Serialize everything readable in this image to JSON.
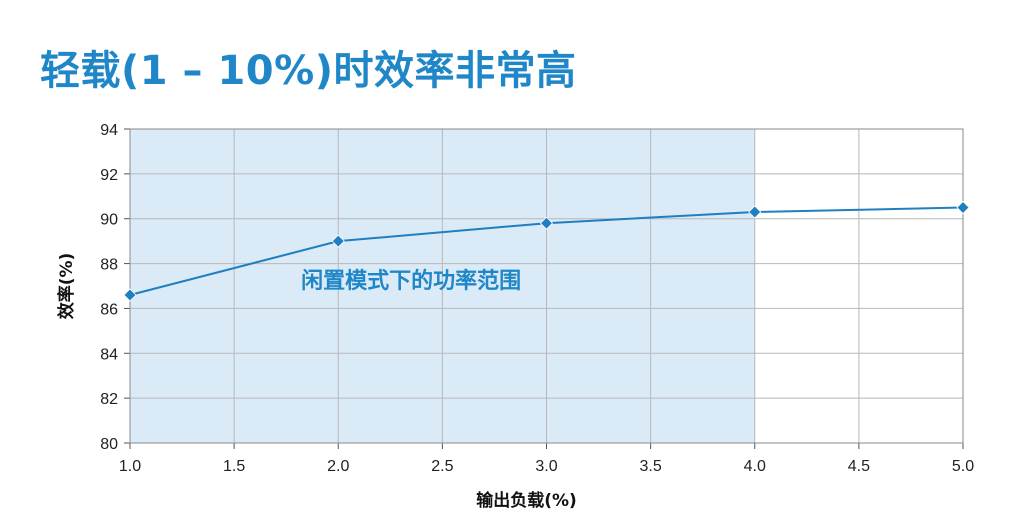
{
  "slide": {
    "title": "轻载(1 – 10%)时效率非常高"
  },
  "chart_data": {
    "type": "line",
    "title": "",
    "xlabel": "输出负载(%)",
    "ylabel": "效率(%)",
    "xlim": [
      1.0,
      5.0
    ],
    "ylim": [
      80,
      94
    ],
    "x_ticks": [
      "1.0",
      "1.5",
      "2.0",
      "2.5",
      "3.0",
      "3.5",
      "4.0",
      "4.5",
      "5.0"
    ],
    "y_ticks": [
      "80",
      "82",
      "84",
      "86",
      "88",
      "90",
      "92",
      "94"
    ],
    "grid": true,
    "legend": "none",
    "series": [
      {
        "x": [
          1.0,
          2.0,
          3.0,
          4.0,
          5.0
        ],
        "y": [
          86.6,
          89.0,
          89.8,
          90.3,
          90.5
        ]
      }
    ],
    "shaded_region": {
      "x_range": [
        1.0,
        4.0
      ],
      "label": "闲置模式下的功率范围"
    },
    "colors": {
      "line": "#1f7fc0",
      "marker": "#1f7fc0",
      "shade": "#daeaf7",
      "grid": "#b8b8b8",
      "title": "#1f86c8"
    }
  }
}
